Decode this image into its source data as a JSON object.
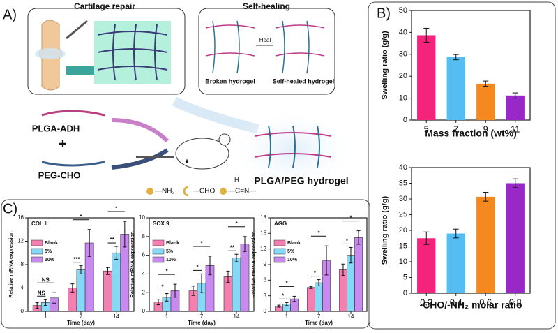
{
  "panel_labels": {
    "A": "A)",
    "B": "B)",
    "C": "C)"
  },
  "diagram": {
    "cartilage_title": "Cartilage repair",
    "selfheal_title": "Self-healing",
    "heal": "Heal",
    "broken": "Broken hydrogel",
    "healed": "Self-healed hydrogel",
    "plga_adh": "PLGA-ADH",
    "plus": "+",
    "peg_cho": "PEG-CHO",
    "nh2": "—NH₂",
    "cho": "—CHO",
    "imine_h": "H",
    "imine": "—C=N—",
    "hydrogel": "PLGA/PEG hydrogel"
  },
  "chart_data": [
    {
      "type": "bar",
      "ylabel": "Swelling ratio (g/g)",
      "xlabel": "Mass fraction (wt%)",
      "categories": [
        "5",
        "7",
        "9",
        "11"
      ],
      "values": [
        38.7,
        28.7,
        16.6,
        11.2
      ],
      "errors": [
        3.2,
        1.2,
        1.2,
        1.2
      ],
      "colors": [
        "#f4247c",
        "#55bdf2",
        "#f5891f",
        "#9928c9"
      ],
      "ylim": [
        0,
        50
      ],
      "yticks": [
        0,
        10,
        20,
        30,
        40,
        50
      ]
    },
    {
      "type": "bar",
      "ylabel": "Swelling ratio (g/g)",
      "xlabel": "-CHO/-NH₂ molar ratio",
      "categories": [
        "0.2",
        "0.4",
        "0.6",
        "0.8"
      ],
      "values": [
        17.5,
        19.0,
        30.7,
        35.0
      ],
      "errors": [
        2.0,
        1.4,
        1.4,
        1.4
      ],
      "colors": [
        "#f4247c",
        "#55bdf2",
        "#f5891f",
        "#9928c9"
      ],
      "ylim": [
        0,
        40
      ],
      "yticks": [
        0,
        5,
        10,
        15,
        20,
        25,
        30,
        35,
        40
      ]
    },
    {
      "type": "bar",
      "title": "COL II",
      "ylabel": "Relative mRNA expression",
      "xlabel": "Time (day)",
      "categories": [
        "1",
        "7",
        "14"
      ],
      "series": [
        {
          "name": "Blank",
          "color": "#f57fb0",
          "values": [
            1.0,
            4.0,
            6.9
          ],
          "errors": [
            0.5,
            0.7,
            0.6
          ]
        },
        {
          "name": "5%",
          "color": "#86d8f7",
          "values": [
            1.5,
            7.1,
            10.0
          ],
          "errors": [
            0.5,
            0.7,
            1.1
          ]
        },
        {
          "name": "10%",
          "color": "#c98af0",
          "values": [
            2.3,
            11.7,
            13.2
          ],
          "errors": [
            0.9,
            2.3,
            2.2
          ]
        }
      ],
      "annotations": [
        "NS",
        "NS",
        "***",
        "*",
        "**",
        "*"
      ],
      "ylim": [
        0,
        16
      ],
      "yticks": [
        0,
        4,
        8,
        12,
        16
      ]
    },
    {
      "type": "bar",
      "title": "SOX 9",
      "ylabel": "Relative mRNA expression",
      "xlabel": "Time (day)",
      "categories": [
        "1",
        "7",
        "14"
      ],
      "series": [
        {
          "name": "Blank",
          "color": "#f57fb0",
          "values": [
            1.0,
            2.2,
            3.7
          ],
          "errors": [
            0.3,
            0.5,
            0.6
          ]
        },
        {
          "name": "5%",
          "color": "#86d8f7",
          "values": [
            1.5,
            3.0,
            5.7
          ],
          "errors": [
            0.4,
            1.0,
            0.4
          ]
        },
        {
          "name": "10%",
          "color": "#c98af0",
          "values": [
            2.2,
            4.9,
            7.2
          ],
          "errors": [
            0.7,
            1.0,
            0.8
          ]
        }
      ],
      "annotations": [
        "*",
        "*",
        "*",
        "*",
        "**",
        "*"
      ],
      "ylim": [
        0,
        10
      ],
      "yticks": [
        0,
        2,
        4,
        6,
        8,
        10
      ]
    },
    {
      "type": "bar",
      "title": "AGG",
      "ylabel": "Relative mRNA expression",
      "xlabel": "Time (day)",
      "categories": [
        "1",
        "7",
        "14"
      ],
      "series": [
        {
          "name": "Blank",
          "color": "#f57fb0",
          "values": [
            1.0,
            4.6,
            8.0
          ],
          "errors": [
            0.2,
            0.2,
            1.1
          ]
        },
        {
          "name": "5%",
          "color": "#86d8f7",
          "values": [
            1.4,
            5.5,
            10.8
          ],
          "errors": [
            0.3,
            0.6,
            1.5
          ]
        },
        {
          "name": "10%",
          "color": "#c98af0",
          "values": [
            2.4,
            9.8,
            14.2
          ],
          "errors": [
            0.5,
            2.8,
            1.3
          ]
        }
      ],
      "annotations": [
        "*",
        "*",
        "*",
        "*",
        "*",
        "*"
      ],
      "ylim": [
        0,
        18
      ],
      "yticks": [
        0,
        3,
        6,
        9,
        12,
        15,
        18
      ]
    }
  ]
}
